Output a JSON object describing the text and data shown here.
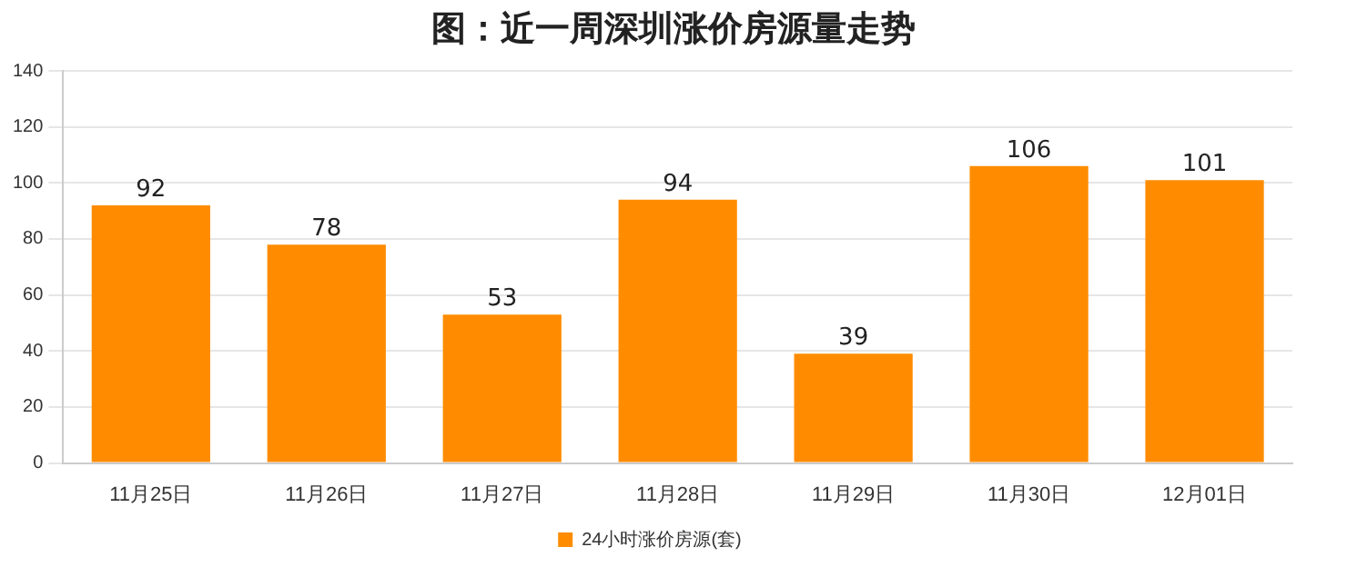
{
  "chart_data": {
    "type": "bar",
    "title": "图：近一周深圳涨价房源量走势",
    "categories": [
      "11月25日",
      "11月26日",
      "11月27日",
      "11月28日",
      "11月29日",
      "11月30日",
      "12月01日"
    ],
    "series": [
      {
        "name": "24小时涨价房源(套)",
        "color": "#ff8c00",
        "values": [
          92,
          78,
          53,
          94,
          39,
          106,
          101
        ]
      }
    ],
    "ylim": [
      0,
      140
    ],
    "yticks": [
      0,
      20,
      40,
      60,
      80,
      100,
      120,
      140
    ],
    "grid": "y",
    "legend": "bottom",
    "data_labels": true
  }
}
